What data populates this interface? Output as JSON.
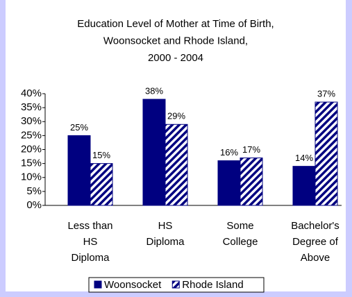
{
  "chart_data": {
    "type": "bar",
    "title": [
      "Education Level of Mother at Time of Birth,",
      "Woonsocket and Rhode Island,",
      "2000 - 2004"
    ],
    "categories": [
      [
        "Less than",
        "HS",
        "Diploma"
      ],
      [
        "HS",
        "Diploma"
      ],
      [
        "Some",
        "College"
      ],
      [
        "Bachelor's",
        "Degree of",
        "Above"
      ]
    ],
    "series": [
      {
        "name": "Woonsocket",
        "color": "#000080",
        "values": [
          25,
          38,
          16,
          14
        ],
        "value_labels": [
          "25%",
          "38%",
          "16%",
          "14%"
        ]
      },
      {
        "name": "Rhode Island",
        "color": "#000080",
        "pattern": "diagonal-stripes",
        "values": [
          15,
          29,
          17,
          37
        ],
        "value_labels": [
          "15%",
          "29%",
          "17%",
          "37%"
        ]
      }
    ],
    "ylim": [
      0,
      40
    ],
    "yticks": [
      {
        "value": 0,
        "label": "0%"
      },
      {
        "value": 5,
        "label": "5%"
      },
      {
        "value": 10,
        "label": "10%"
      },
      {
        "value": 15,
        "label": "15%"
      },
      {
        "value": 20,
        "label": "20%"
      },
      {
        "value": 25,
        "label": "25%"
      },
      {
        "value": 30,
        "label": "30%"
      },
      {
        "value": 35,
        "label": "35%"
      },
      {
        "value": 40,
        "label": "40%"
      }
    ],
    "grid": false,
    "legend": "bottom"
  }
}
